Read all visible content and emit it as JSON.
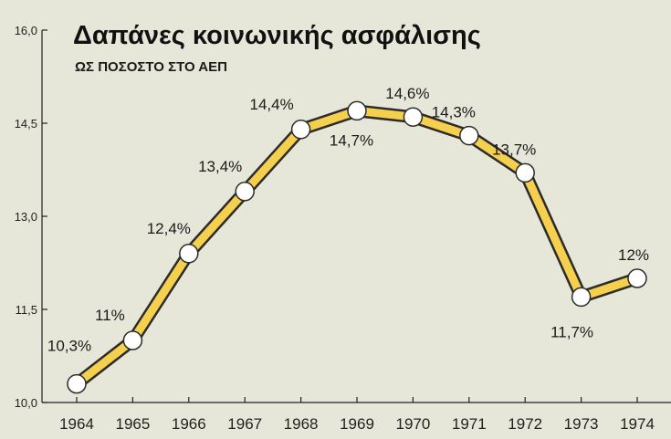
{
  "colors": {
    "background": "#e6e7d8",
    "line_fill": "#f5cf4e",
    "line_outline": "#2b2b2b",
    "marker_fill": "#ffffff",
    "axis": "#222222"
  },
  "chart_data": {
    "type": "line",
    "title": "Δαπάνες κοινωνικής ασφάλισης",
    "subtitle": "ΩΣ ΠΟΣΟΣΤΟ ΣΤΟ ΑΕΠ",
    "xlabel": "",
    "ylabel": "",
    "ylim": [
      10.0,
      16.0
    ],
    "y_ticks": [
      10.0,
      11.5,
      13.0,
      14.5,
      16.0
    ],
    "y_tick_labels": [
      "10,0",
      "11,5",
      "13,0",
      "14,5",
      "16,0"
    ],
    "grid": false,
    "categories": [
      "1964",
      "1965",
      "1966",
      "1967",
      "1968",
      "1969",
      "1970",
      "1971",
      "1972",
      "1973",
      "1974"
    ],
    "values": [
      10.3,
      11.0,
      12.4,
      13.4,
      14.4,
      14.7,
      14.6,
      14.3,
      13.7,
      11.7,
      12.0
    ],
    "data_labels": [
      "10,3%",
      "11%",
      "12,4%",
      "13,4%",
      "14,4%",
      "14,7%",
      "14,6%",
      "14,3%",
      "13,7%",
      "11,7%",
      "12%"
    ]
  }
}
